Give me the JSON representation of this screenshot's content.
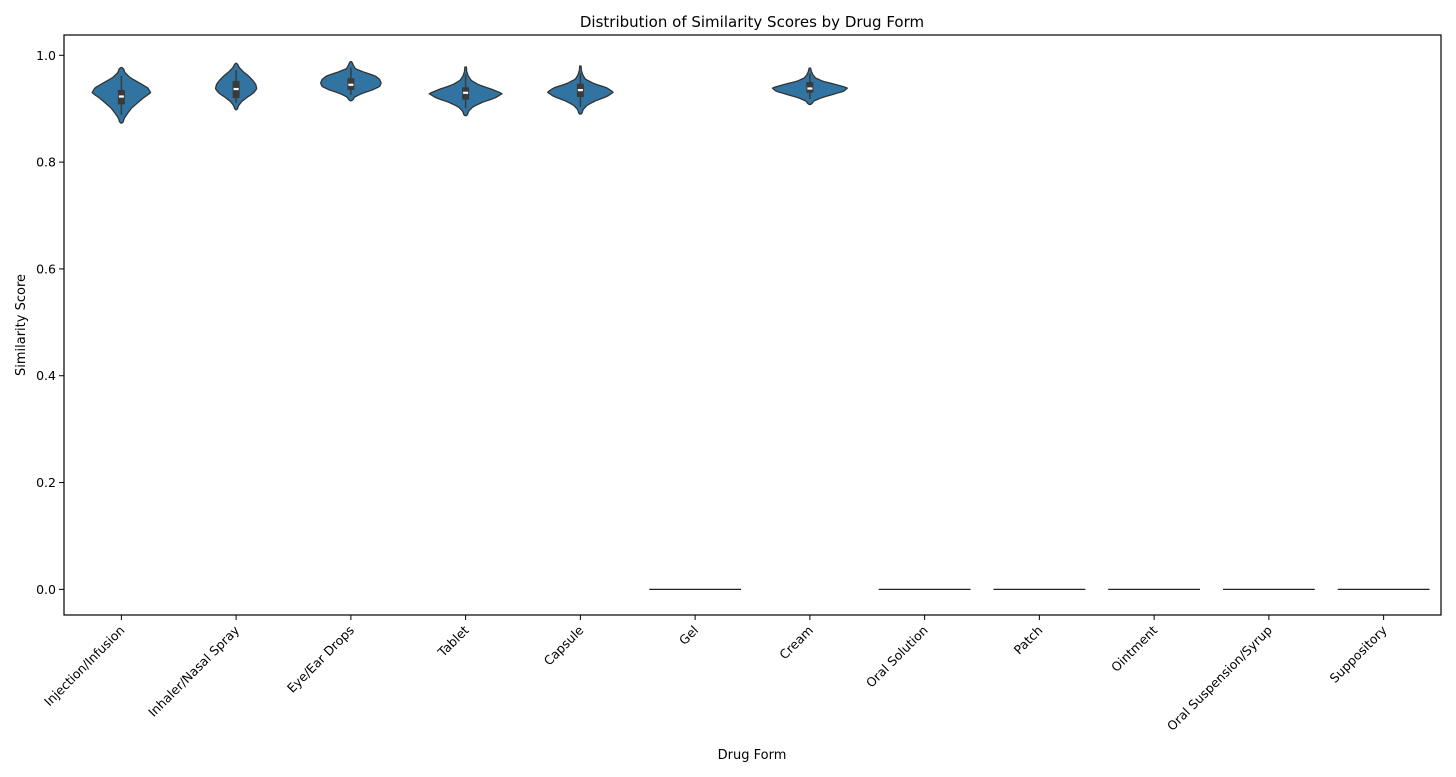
{
  "chart_data": {
    "type": "violin",
    "title": "Distribution of Similarity Scores by Drug Form",
    "xlabel": "Drug Form",
    "ylabel": "Similarity Score",
    "ylim": [
      -0.048,
      1.038
    ],
    "yticks": [
      "0.0",
      "0.2",
      "0.4",
      "0.6",
      "0.8",
      "1.0"
    ],
    "grid": false,
    "fill_color": "#3274a1",
    "categories": [
      {
        "label": "Injection/Infusion",
        "min": 0.873,
        "q1": 0.908,
        "median": 0.923,
        "q3": 0.935,
        "max": 0.977,
        "mode": 0.925,
        "width": 0.64,
        "shape": [
          0.05,
          0.1,
          0.22,
          0.35,
          0.55,
          0.75,
          1.0,
          0.9,
          0.6,
          0.3,
          0.12,
          0.06
        ]
      },
      {
        "label": "Inhaler/Nasal Spray",
        "min": 0.898,
        "q1": 0.92,
        "median": 0.937,
        "q3": 0.952,
        "max": 0.985,
        "mode": 0.935,
        "width": 0.45,
        "shape": [
          0.05,
          0.12,
          0.28,
          0.55,
          0.85,
          1.0,
          0.95,
          0.8,
          0.6,
          0.35,
          0.15,
          0.05
        ]
      },
      {
        "label": "Eye/Ear Drops",
        "min": 0.915,
        "q1": 0.935,
        "median": 0.945,
        "q3": 0.957,
        "max": 0.988,
        "mode": 0.945,
        "width": 0.66,
        "shape": [
          0.05,
          0.12,
          0.35,
          0.7,
          0.95,
          1.0,
          0.95,
          0.8,
          0.45,
          0.15,
          0.08,
          0.03
        ]
      },
      {
        "label": "Tablet",
        "min": 0.887,
        "q1": 0.917,
        "median": 0.93,
        "q3": 0.94,
        "max": 0.978,
        "mode": 0.932,
        "width": 0.8,
        "shape": [
          0.04,
          0.08,
          0.2,
          0.45,
          0.8,
          1.0,
          0.7,
          0.35,
          0.15,
          0.07,
          0.03,
          0.02
        ]
      },
      {
        "label": "Capsule",
        "min": 0.89,
        "q1": 0.922,
        "median": 0.935,
        "q3": 0.947,
        "max": 0.98,
        "mode": 0.938,
        "width": 0.72,
        "shape": [
          0.04,
          0.08,
          0.2,
          0.45,
          0.8,
          1.0,
          0.8,
          0.4,
          0.15,
          0.07,
          0.03,
          0.02
        ]
      },
      {
        "label": "Gel",
        "flat": 0.0
      },
      {
        "label": "Cream",
        "min": 0.908,
        "q1": 0.93,
        "median": 0.938,
        "q3": 0.95,
        "max": 0.976,
        "mode": 0.938,
        "width": 0.82,
        "shape": [
          0.04,
          0.1,
          0.3,
          0.6,
          0.9,
          1.0,
          0.7,
          0.35,
          0.15,
          0.08,
          0.04,
          0.02
        ]
      },
      {
        "label": "Oral Solution",
        "flat": 0.0
      },
      {
        "label": "Patch",
        "flat": 0.0
      },
      {
        "label": "Ointment",
        "flat": 0.0
      },
      {
        "label": "Oral Suspension/Syrup",
        "flat": 0.0
      },
      {
        "label": "Suppository",
        "flat": 0.0
      }
    ]
  }
}
